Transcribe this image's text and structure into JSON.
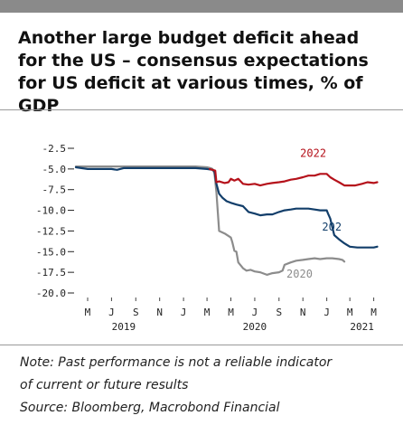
{
  "title": "Another large budget deficit ahead for the US – consensus expectations for US deficit at various times, % of GDP",
  "notes": {
    "line1": "Note: Past performance is not a reliable indicator",
    "line2": "of current or future results",
    "source": "Source: Bloomberg, Macrobond Financial"
  },
  "colors": {
    "s2022": "#b5121b",
    "s2021": "#123e6a",
    "s2020": "#8c8c8c"
  },
  "chart_data": {
    "type": "line",
    "title": "",
    "xlabel": "",
    "ylabel": "",
    "ylim": [
      -20,
      -2.5
    ],
    "xlim": [
      "2019-04-01",
      "2021-05-25"
    ],
    "yticks": [
      -2.5,
      -5.0,
      -7.5,
      -10.0,
      -12.5,
      -15.0,
      -17.5,
      -20.0
    ],
    "ytick_labels": [
      "-2.5",
      "-5.0",
      "-7.5",
      "-10.0",
      "-12.5",
      "-15.0",
      "-17.5",
      "-20.0"
    ],
    "xticks": [
      {
        "date": "2019-05-01",
        "label": "M"
      },
      {
        "date": "2019-07-01",
        "label": "J"
      },
      {
        "date": "2019-09-01",
        "label": "S"
      },
      {
        "date": "2019-11-01",
        "label": "N"
      },
      {
        "date": "2020-01-01",
        "label": "J"
      },
      {
        "date": "2020-03-01",
        "label": "M"
      },
      {
        "date": "2020-05-01",
        "label": "M"
      },
      {
        "date": "2020-07-01",
        "label": "J"
      },
      {
        "date": "2020-09-01",
        "label": "S"
      },
      {
        "date": "2020-11-01",
        "label": "N"
      },
      {
        "date": "2021-01-01",
        "label": "J"
      },
      {
        "date": "2021-03-01",
        "label": "M"
      },
      {
        "date": "2021-05-01",
        "label": "M"
      }
    ],
    "year_labels": [
      {
        "date": "2019-08-01",
        "label": "2019"
      },
      {
        "date": "2020-07-01",
        "label": "2020"
      },
      {
        "date": "2021-04-01",
        "label": "2021"
      }
    ],
    "grid": false,
    "series": [
      {
        "name": "2022",
        "color": "#b5121b",
        "points": [
          [
            "2020-03-08",
            -5.0
          ],
          [
            "2020-03-15",
            -5.1
          ],
          [
            "2020-03-22",
            -5.2
          ],
          [
            "2020-03-25",
            -6.6
          ],
          [
            "2020-04-01",
            -6.5
          ],
          [
            "2020-04-15",
            -6.7
          ],
          [
            "2020-04-25",
            -6.6
          ],
          [
            "2020-05-01",
            -6.2
          ],
          [
            "2020-05-10",
            -6.4
          ],
          [
            "2020-05-20",
            -6.2
          ],
          [
            "2020-06-01",
            -6.8
          ],
          [
            "2020-06-15",
            -6.9
          ],
          [
            "2020-07-01",
            -6.8
          ],
          [
            "2020-07-15",
            -7.0
          ],
          [
            "2020-08-01",
            -6.8
          ],
          [
            "2020-08-15",
            -6.7
          ],
          [
            "2020-09-01",
            -6.6
          ],
          [
            "2020-09-15",
            -6.5
          ],
          [
            "2020-10-01",
            -6.3
          ],
          [
            "2020-10-15",
            -6.2
          ],
          [
            "2020-11-01",
            -6.0
          ],
          [
            "2020-11-15",
            -5.8
          ],
          [
            "2020-12-01",
            -5.8
          ],
          [
            "2020-12-15",
            -5.6
          ],
          [
            "2021-01-01",
            -5.6
          ],
          [
            "2021-01-10",
            -6.0
          ],
          [
            "2021-01-20",
            -6.3
          ],
          [
            "2021-02-01",
            -6.6
          ],
          [
            "2021-02-15",
            -7.0
          ],
          [
            "2021-03-01",
            -7.0
          ],
          [
            "2021-03-15",
            -7.0
          ],
          [
            "2021-04-01",
            -6.8
          ],
          [
            "2021-04-15",
            -6.6
          ],
          [
            "2021-05-01",
            -6.7
          ],
          [
            "2021-05-10",
            -6.6
          ]
        ]
      },
      {
        "name": "2021",
        "color": "#123e6a",
        "points": [
          [
            "2019-04-01",
            -4.8
          ],
          [
            "2019-05-01",
            -5.0
          ],
          [
            "2019-06-01",
            -5.0
          ],
          [
            "2019-07-01",
            -5.0
          ],
          [
            "2019-07-15",
            -5.1
          ],
          [
            "2019-08-01",
            -4.9
          ],
          [
            "2019-09-01",
            -4.9
          ],
          [
            "2019-10-01",
            -4.9
          ],
          [
            "2019-11-01",
            -4.9
          ],
          [
            "2019-12-01",
            -4.9
          ],
          [
            "2020-01-01",
            -4.9
          ],
          [
            "2020-02-01",
            -4.9
          ],
          [
            "2020-03-01",
            -5.0
          ],
          [
            "2020-03-15",
            -5.1
          ],
          [
            "2020-03-20",
            -5.3
          ],
          [
            "2020-03-25",
            -6.8
          ],
          [
            "2020-04-01",
            -8.0
          ],
          [
            "2020-04-10",
            -8.5
          ],
          [
            "2020-04-20",
            -8.9
          ],
          [
            "2020-05-01",
            -9.1
          ],
          [
            "2020-05-15",
            -9.3
          ],
          [
            "2020-06-01",
            -9.5
          ],
          [
            "2020-06-15",
            -10.2
          ],
          [
            "2020-07-01",
            -10.4
          ],
          [
            "2020-07-15",
            -10.6
          ],
          [
            "2020-08-01",
            -10.5
          ],
          [
            "2020-08-15",
            -10.5
          ],
          [
            "2020-09-01",
            -10.2
          ],
          [
            "2020-09-15",
            -10.0
          ],
          [
            "2020-10-01",
            -9.9
          ],
          [
            "2020-10-15",
            -9.8
          ],
          [
            "2020-11-01",
            -9.8
          ],
          [
            "2020-11-15",
            -9.8
          ],
          [
            "2020-12-01",
            -9.9
          ],
          [
            "2020-12-15",
            -10.0
          ],
          [
            "2021-01-01",
            -10.0
          ],
          [
            "2021-01-05",
            -10.5
          ],
          [
            "2021-01-10",
            -11.0
          ],
          [
            "2021-01-20",
            -13.0
          ],
          [
            "2021-02-01",
            -13.5
          ],
          [
            "2021-02-15",
            -14.0
          ],
          [
            "2021-03-01",
            -14.4
          ],
          [
            "2021-03-20",
            -14.5
          ],
          [
            "2021-04-10",
            -14.5
          ],
          [
            "2021-05-01",
            -14.5
          ],
          [
            "2021-05-10",
            -14.4
          ]
        ]
      },
      {
        "name": "2020",
        "color": "#8c8c8c",
        "points": [
          [
            "2019-04-01",
            -4.7
          ],
          [
            "2019-05-01",
            -4.7
          ],
          [
            "2019-06-01",
            -4.7
          ],
          [
            "2019-07-01",
            -4.7
          ],
          [
            "2019-08-01",
            -4.7
          ],
          [
            "2019-09-01",
            -4.7
          ],
          [
            "2019-10-01",
            -4.7
          ],
          [
            "2019-11-01",
            -4.7
          ],
          [
            "2019-12-01",
            -4.7
          ],
          [
            "2020-01-01",
            -4.7
          ],
          [
            "2020-02-01",
            -4.7
          ],
          [
            "2020-03-01",
            -4.8
          ],
          [
            "2020-03-10",
            -4.9
          ],
          [
            "2020-03-15",
            -5.0
          ],
          [
            "2020-03-20",
            -5.5
          ],
          [
            "2020-03-25",
            -7.8
          ],
          [
            "2020-04-01",
            -12.5
          ],
          [
            "2020-04-15",
            -12.8
          ],
          [
            "2020-05-01",
            -13.3
          ],
          [
            "2020-05-05",
            -13.9
          ],
          [
            "2020-05-10",
            -14.9
          ],
          [
            "2020-05-15",
            -15.0
          ],
          [
            "2020-05-20",
            -16.3
          ],
          [
            "2020-06-01",
            -17.0
          ],
          [
            "2020-06-10",
            -17.3
          ],
          [
            "2020-06-20",
            -17.2
          ],
          [
            "2020-07-01",
            -17.4
          ],
          [
            "2020-07-15",
            -17.5
          ],
          [
            "2020-08-01",
            -17.8
          ],
          [
            "2020-08-15",
            -17.6
          ],
          [
            "2020-09-01",
            -17.5
          ],
          [
            "2020-09-10",
            -17.3
          ],
          [
            "2020-09-15",
            -16.6
          ],
          [
            "2020-10-01",
            -16.3
          ],
          [
            "2020-10-15",
            -16.1
          ],
          [
            "2020-11-01",
            -16.0
          ],
          [
            "2020-11-15",
            -15.9
          ],
          [
            "2020-12-01",
            -15.8
          ],
          [
            "2020-12-15",
            -15.9
          ],
          [
            "2021-01-01",
            -15.8
          ],
          [
            "2021-01-15",
            -15.8
          ],
          [
            "2021-02-01",
            -15.9
          ],
          [
            "2021-02-10",
            -16.0
          ],
          [
            "2021-02-15",
            -16.2
          ]
        ]
      }
    ],
    "annotations": [
      {
        "text": "2022",
        "series": "2022"
      },
      {
        "text": "202",
        "series": "2021"
      },
      {
        "text": "2020",
        "series": "2020"
      }
    ]
  }
}
